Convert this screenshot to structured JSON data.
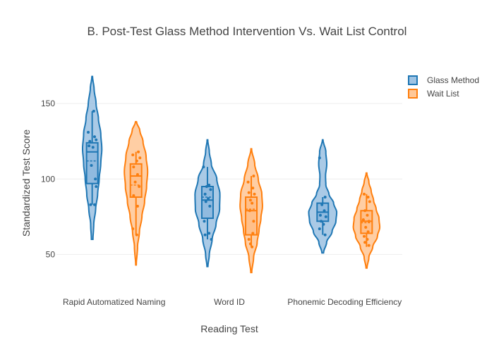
{
  "chart_data": {
    "type": "violin",
    "title": "B. Post-Test Glass Method Intervention Vs. Wait List Control",
    "xlabel": "Reading Test",
    "ylabel": "Standardized Test Score",
    "ylim": [
      32,
      172
    ],
    "yticks": [
      50,
      100,
      150
    ],
    "grid": true,
    "legend_position": "top-right",
    "categories": [
      "Rapid Automatized Naming",
      "Word ID",
      "Phonemic Decoding Efficiency"
    ],
    "series": [
      {
        "name": "Glass Method",
        "color": "#1f77b4",
        "fill": "#8db8de",
        "groups": [
          {
            "category": "Rapid Automatized Naming",
            "min": 60,
            "max": 168,
            "density": [
              [
                60,
                0.05
              ],
              [
                70,
                0.1
              ],
              [
                80,
                0.22
              ],
              [
                90,
                0.35
              ],
              [
                100,
                0.45
              ],
              [
                110,
                0.55
              ],
              [
                120,
                0.62
              ],
              [
                130,
                0.55
              ],
              [
                140,
                0.4
              ],
              [
                150,
                0.25
              ],
              [
                160,
                0.12
              ],
              [
                168,
                0.02
              ]
            ],
            "box": {
              "q1": 97,
              "median": 118,
              "q3": 124,
              "mean": 112,
              "whisker_low": 83,
              "whisker_high": 145
            },
            "points": [
              [
                0.2,
                145
              ],
              [
                -0.5,
                131
              ],
              [
                0.3,
                128
              ],
              [
                -0.3,
                125
              ],
              [
                0.5,
                126
              ],
              [
                -0.4,
                122
              ],
              [
                0.1,
                121
              ],
              [
                -0.1,
                109
              ],
              [
                0.4,
                100
              ],
              [
                0.5,
                95
              ],
              [
                -0.2,
                83
              ],
              [
                0.3,
                83
              ]
            ]
          },
          {
            "category": "Word ID",
            "min": 42,
            "max": 126,
            "density": [
              [
                42,
                0.03
              ],
              [
                50,
                0.12
              ],
              [
                60,
                0.3
              ],
              [
                70,
                0.55
              ],
              [
                80,
                0.78
              ],
              [
                90,
                0.8
              ],
              [
                100,
                0.6
              ],
              [
                110,
                0.25
              ],
              [
                118,
                0.12
              ],
              [
                126,
                0.02
              ]
            ],
            "box": {
              "q1": 74,
              "median": 86,
              "q3": 95,
              "mean": 88,
              "whisker_low": 60,
              "whisker_high": 108
            },
            "points": [
              [
                -0.5,
                108
              ],
              [
                0.2,
                96
              ],
              [
                -0.1,
                95
              ],
              [
                0.4,
                93
              ],
              [
                -0.3,
                90
              ],
              [
                0.1,
                87
              ],
              [
                -0.2,
                85
              ],
              [
                0.3,
                82
              ],
              [
                -0.4,
                72
              ],
              [
                0.2,
                64
              ],
              [
                -0.3,
                63
              ],
              [
                0.5,
                60
              ]
            ]
          },
          {
            "category": "Phonemic Decoding Efficiency",
            "min": 51,
            "max": 126,
            "density": [
              [
                51,
                0.05
              ],
              [
                58,
                0.25
              ],
              [
                65,
                0.6
              ],
              [
                72,
                0.85
              ],
              [
                78,
                0.9
              ],
              [
                84,
                0.7
              ],
              [
                90,
                0.4
              ],
              [
                96,
                0.2
              ],
              [
                102,
                0.18
              ],
              [
                110,
                0.26
              ],
              [
                118,
                0.2
              ],
              [
                126,
                0.02
              ]
            ],
            "box": {
              "q1": 72,
              "median": 78,
              "q3": 84,
              "mean": 78,
              "whisker_low": 63,
              "whisker_high": 88
            },
            "points": [
              [
                -0.4,
                114
              ],
              [
                0.3,
                88
              ],
              [
                -0.1,
                83
              ],
              [
                0.2,
                79
              ],
              [
                -0.3,
                76
              ],
              [
                0.4,
                75
              ],
              [
                -0.2,
                72
              ],
              [
                0.1,
                70
              ],
              [
                -0.4,
                67
              ],
              [
                0.3,
                63
              ]
            ]
          }
        ]
      },
      {
        "name": "Wait List",
        "color": "#ff7f0e",
        "fill": "#ffbe86",
        "groups": [
          {
            "category": "Rapid Automatized Naming",
            "min": 43,
            "max": 138,
            "density": [
              [
                43,
                0.02
              ],
              [
                55,
                0.1
              ],
              [
                65,
                0.22
              ],
              [
                75,
                0.38
              ],
              [
                85,
                0.55
              ],
              [
                95,
                0.68
              ],
              [
                105,
                0.75
              ],
              [
                115,
                0.65
              ],
              [
                125,
                0.45
              ],
              [
                132,
                0.25
              ],
              [
                138,
                0.03
              ]
            ],
            "box": {
              "q1": 88,
              "median": 102,
              "q3": 110,
              "mean": 96,
              "whisker_low": 63,
              "whisker_high": 118
            },
            "points": [
              [
                0.3,
                118
              ],
              [
                -0.4,
                116
              ],
              [
                0.5,
                114
              ],
              [
                0.1,
                112
              ],
              [
                -0.3,
                108
              ],
              [
                0.2,
                103
              ],
              [
                -0.1,
                98
              ],
              [
                0.4,
                95
              ],
              [
                -0.3,
                89
              ],
              [
                0.2,
                82
              ],
              [
                -0.4,
                67
              ],
              [
                0.1,
                63
              ]
            ]
          },
          {
            "category": "Word ID",
            "min": 38,
            "max": 120,
            "density": [
              [
                38,
                0.03
              ],
              [
                48,
                0.15
              ],
              [
                58,
                0.38
              ],
              [
                66,
                0.5
              ],
              [
                74,
                0.62
              ],
              [
                82,
                0.72
              ],
              [
                90,
                0.68
              ],
              [
                100,
                0.45
              ],
              [
                110,
                0.22
              ],
              [
                120,
                0.02
              ]
            ],
            "box": {
              "q1": 63,
              "median": 79,
              "q3": 88,
              "mean": 80,
              "whisker_low": 55,
              "whisker_high": 102
            },
            "points": [
              [
                0.3,
                102
              ],
              [
                -0.4,
                98
              ],
              [
                0.2,
                94
              ],
              [
                -0.3,
                91
              ],
              [
                0.4,
                90
              ],
              [
                -0.1,
                86
              ],
              [
                0.1,
                84
              ],
              [
                -0.2,
                79
              ],
              [
                0.3,
                72
              ],
              [
                0.2,
                64
              ],
              [
                -0.3,
                60
              ],
              [
                -0.1,
                57
              ],
              [
                0.1,
                55
              ]
            ]
          },
          {
            "category": "Phonemic Decoding Efficiency",
            "min": 41,
            "max": 104,
            "density": [
              [
                41,
                0.03
              ],
              [
                48,
                0.15
              ],
              [
                55,
                0.4
              ],
              [
                62,
                0.7
              ],
              [
                68,
                0.85
              ],
              [
                74,
                0.8
              ],
              [
                80,
                0.62
              ],
              [
                86,
                0.45
              ],
              [
                92,
                0.3
              ],
              [
                98,
                0.15
              ],
              [
                104,
                0.02
              ]
            ],
            "box": {
              "q1": 64,
              "median": 72,
              "q3": 79,
              "mean": 71,
              "whisker_low": 55,
              "whisker_high": 90
            },
            "points": [
              [
                -0.3,
                90
              ],
              [
                0.2,
                88
              ],
              [
                0.4,
                85
              ],
              [
                -0.2,
                79
              ],
              [
                0.1,
                76
              ],
              [
                -0.4,
                73
              ],
              [
                0.3,
                72
              ],
              [
                -0.1,
                68
              ],
              [
                0.2,
                65
              ],
              [
                -0.3,
                62
              ],
              [
                0.1,
                60
              ],
              [
                -0.2,
                58
              ],
              [
                0.3,
                56
              ]
            ]
          }
        ]
      }
    ]
  }
}
